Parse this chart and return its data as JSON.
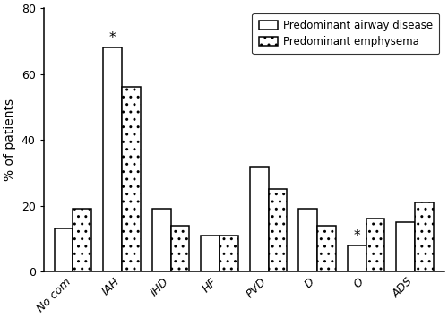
{
  "categories": [
    "No com",
    "IAH",
    "IHD",
    "HF",
    "PVD",
    "D",
    "O",
    "ADS"
  ],
  "airway_values": [
    13,
    68,
    19,
    11,
    32,
    19,
    8,
    15
  ],
  "emphysema_values": [
    19,
    56,
    14,
    11,
    25,
    14,
    16,
    21
  ],
  "airway_label": "Predominant airway disease",
  "emphysema_label": "Predominant emphysema",
  "ylabel": "% of patients",
  "ylim": [
    0,
    80
  ],
  "yticks": [
    0,
    20,
    40,
    60,
    80
  ],
  "bar_width": 0.38,
  "airway_color": "#ffffff",
  "emphysema_color": "#ffffff",
  "edge_color": "#000000",
  "sig_IAH_idx": 1,
  "sig_O_idx": 6,
  "background_color": "#ffffff",
  "tick_fontsize": 9,
  "ylabel_fontsize": 10,
  "legend_fontsize": 8.5
}
